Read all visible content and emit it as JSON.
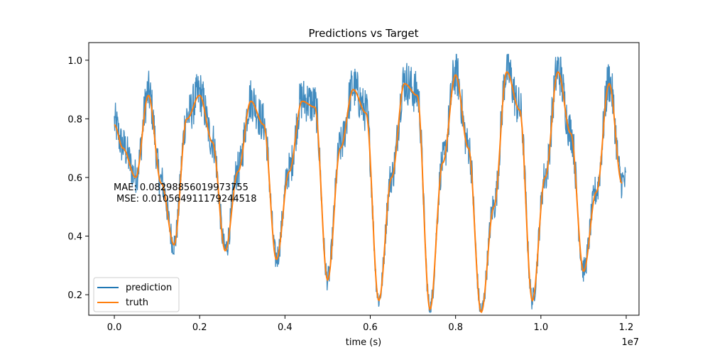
{
  "chart_data": {
    "type": "line",
    "title": "Predictions vs Target",
    "xlabel": "time (s)",
    "ylabel": "",
    "x_offset_label": "1e7",
    "xlim": [
      -0.06,
      1.23
    ],
    "ylim": [
      0.13,
      1.06
    ],
    "x_scale_note": "x values in units of 1e7 s",
    "xticks": [
      0.0,
      0.2,
      0.4,
      0.6,
      0.8,
      1.0,
      1.2
    ],
    "xtick_labels": [
      "0.0",
      "0.2",
      "0.4",
      "0.6",
      "0.8",
      "1.0",
      "1.2"
    ],
    "yticks": [
      0.2,
      0.4,
      0.6,
      0.8,
      1.0
    ],
    "ytick_labels": [
      "0.2",
      "0.4",
      "0.6",
      "0.8",
      "1.0"
    ],
    "grid": false,
    "legend_position": "lower-left",
    "annotations": [
      "MAE: 0.08298856019973755",
      "MSE: 0.010564911179244518"
    ],
    "series": [
      {
        "name": "prediction",
        "color": "#1f77b4",
        "x_start": 0.0,
        "x_end": 1.2,
        "noise_amplitude": 0.07,
        "note": "noisy prediction closely tracking truth"
      },
      {
        "name": "truth",
        "color": "#ff7f0e",
        "x": [
          0.0,
          0.02,
          0.05,
          0.08,
          0.11,
          0.14,
          0.17,
          0.2,
          0.23,
          0.26,
          0.29,
          0.32,
          0.35,
          0.38,
          0.41,
          0.44,
          0.47,
          0.5,
          0.53,
          0.56,
          0.59,
          0.62,
          0.65,
          0.68,
          0.71,
          0.74,
          0.77,
          0.8,
          0.83,
          0.86,
          0.89,
          0.92,
          0.95,
          0.98,
          1.01,
          1.04,
          1.07,
          1.1,
          1.13,
          1.16,
          1.19
        ],
        "values": [
          0.78,
          0.7,
          0.6,
          0.88,
          0.58,
          0.37,
          0.8,
          0.88,
          0.72,
          0.35,
          0.62,
          0.86,
          0.78,
          0.32,
          0.62,
          0.86,
          0.84,
          0.25,
          0.7,
          0.9,
          0.82,
          0.18,
          0.6,
          0.92,
          0.88,
          0.15,
          0.65,
          0.95,
          0.7,
          0.14,
          0.5,
          0.96,
          0.83,
          0.18,
          0.6,
          0.96,
          0.75,
          0.28,
          0.55,
          0.92,
          0.58
        ]
      }
    ]
  }
}
